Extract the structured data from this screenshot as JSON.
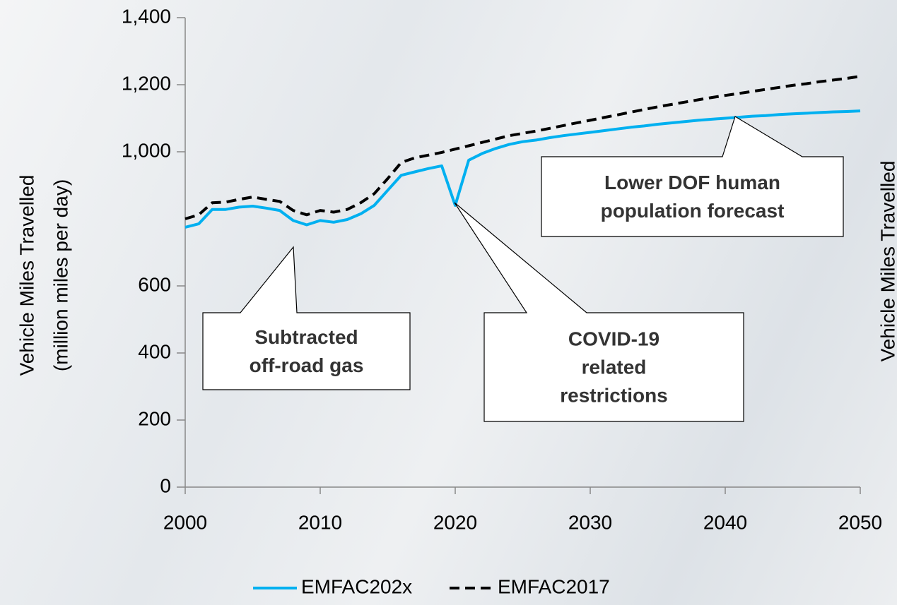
{
  "chart_data": {
    "type": "line",
    "y_label": [
      "Vehicle Miles Travelled",
      "(million miles per day)"
    ],
    "y2_label": "Vehicle Miles Travelled",
    "x": [
      2000,
      2001,
      2002,
      2003,
      2004,
      2005,
      2006,
      2007,
      2008,
      2009,
      2010,
      2011,
      2012,
      2013,
      2014,
      2015,
      2016,
      2017,
      2018,
      2019,
      2020,
      2021,
      2022,
      2023,
      2024,
      2025,
      2026,
      2027,
      2028,
      2029,
      2030,
      2031,
      2032,
      2033,
      2034,
      2035,
      2036,
      2037,
      2038,
      2039,
      2040,
      2041,
      2042,
      2043,
      2044,
      2045,
      2046,
      2047,
      2048,
      2049,
      2050
    ],
    "series": [
      {
        "name": "EMFAC202x",
        "color": "#00b0f0",
        "dash": false,
        "values": [
          775,
          785,
          828,
          828,
          835,
          838,
          832,
          825,
          795,
          782,
          795,
          790,
          798,
          815,
          840,
          885,
          930,
          940,
          950,
          958,
          840,
          975,
          995,
          1010,
          1022,
          1030,
          1035,
          1042,
          1048,
          1053,
          1058,
          1063,
          1068,
          1073,
          1077,
          1082,
          1086,
          1090,
          1094,
          1097,
          1100,
          1103,
          1106,
          1108,
          1111,
          1113,
          1115,
          1117,
          1119,
          1120,
          1122
        ]
      },
      {
        "name": "EMFAC2017",
        "color": "#000000",
        "dash": true,
        "values": [
          800,
          812,
          848,
          850,
          858,
          865,
          858,
          852,
          825,
          812,
          825,
          820,
          828,
          848,
          875,
          920,
          968,
          982,
          990,
          998,
          1008,
          1018,
          1028,
          1038,
          1048,
          1055,
          1062,
          1070,
          1078,
          1086,
          1094,
          1102,
          1110,
          1118,
          1126,
          1134,
          1141,
          1148,
          1155,
          1162,
          1168,
          1174,
          1180,
          1186,
          1192,
          1198,
          1203,
          1209,
          1214,
          1219,
          1225
        ]
      }
    ],
    "xlim": [
      2000,
      2050
    ],
    "xticks": [
      2000,
      2010,
      2020,
      2030,
      2040,
      2050
    ],
    "ylim": [
      0,
      1400
    ],
    "yticks": [
      0,
      200,
      400,
      600,
      {
        "value": 1000,
        "label": "1,000"
      },
      {
        "value": 1200,
        "label": "1,200"
      },
      {
        "value": 1400,
        "label": "1,400"
      }
    ],
    "annotations": [
      {
        "lines": [
          "Subtracted",
          "off-road gas"
        ]
      },
      {
        "lines": [
          "COVID-19",
          "related",
          "restrictions"
        ]
      },
      {
        "lines": [
          "Lower DOF human",
          "population forecast"
        ]
      }
    ],
    "legend": "bottom"
  }
}
